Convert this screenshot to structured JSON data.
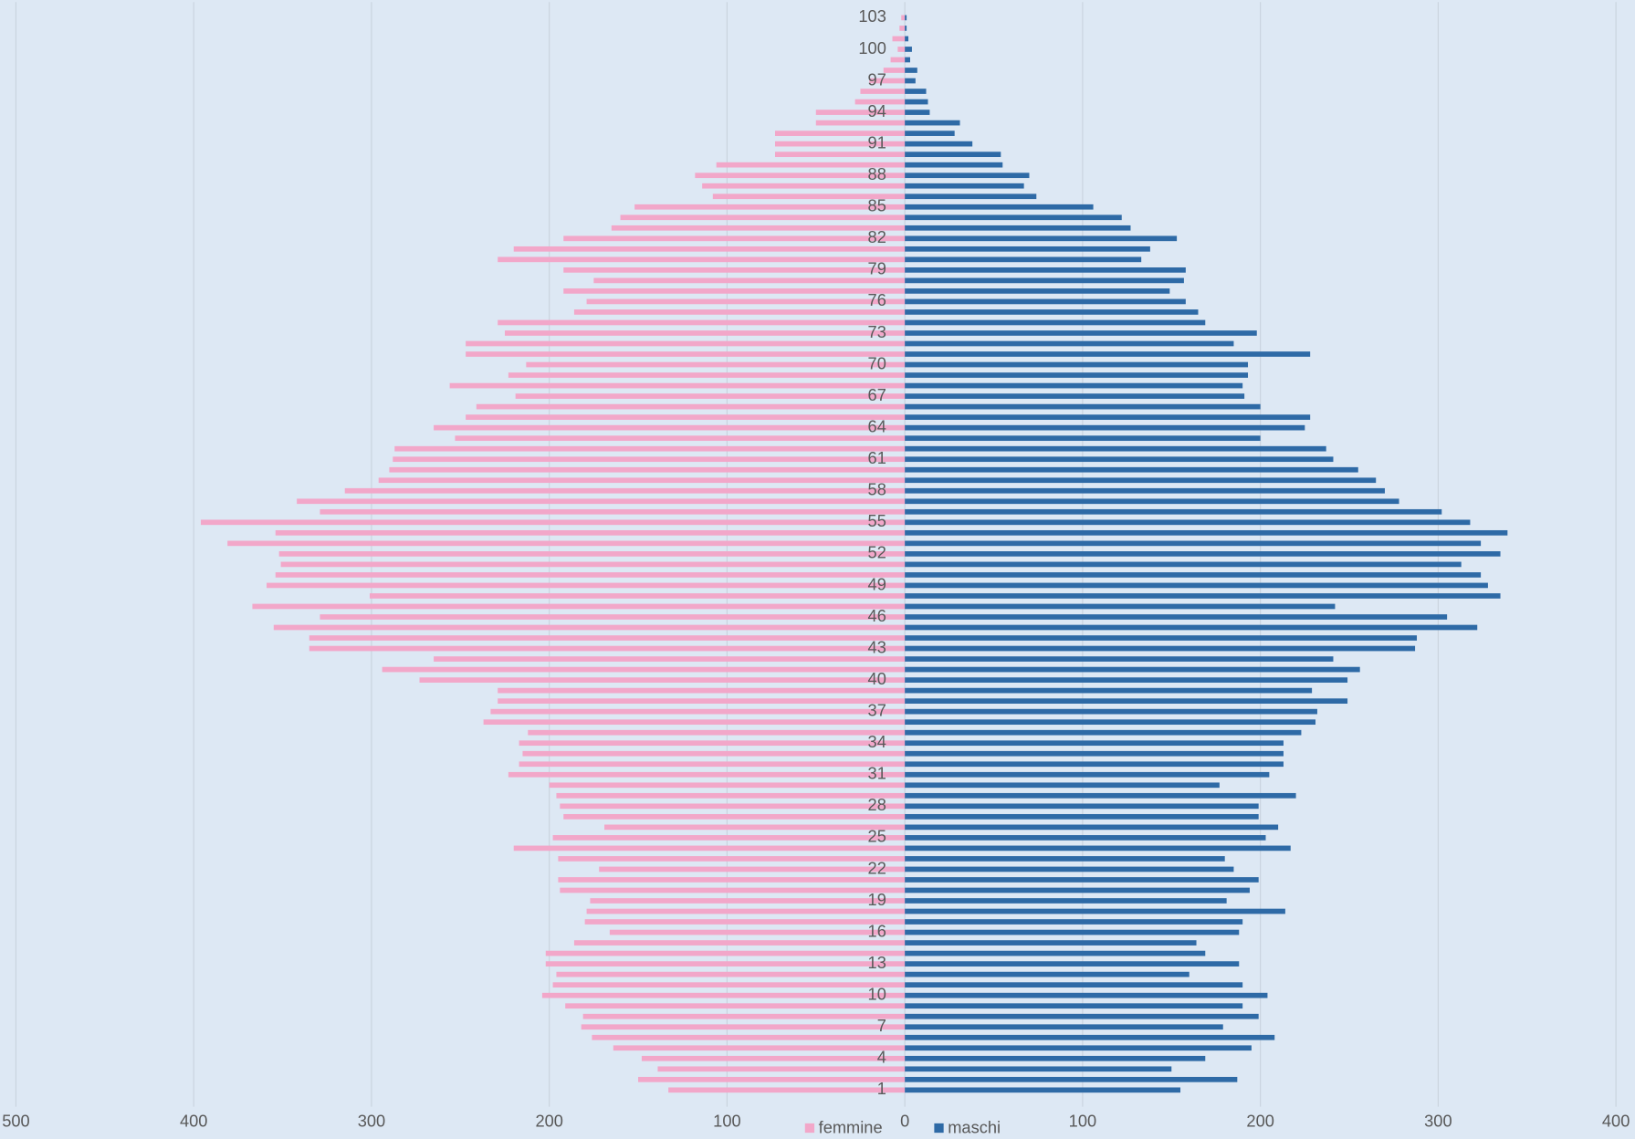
{
  "chart_data": {
    "type": "pyramid",
    "categories": [
      "1",
      null,
      null,
      "4",
      null,
      null,
      "7",
      null,
      null,
      "10",
      null,
      null,
      "13",
      null,
      null,
      "16",
      null,
      null,
      "19",
      null,
      null,
      "22",
      null,
      null,
      "25",
      null,
      null,
      "28",
      null,
      null,
      "31",
      null,
      null,
      "34",
      null,
      null,
      "37",
      null,
      null,
      "40",
      null,
      null,
      "43",
      null,
      null,
      "46",
      null,
      null,
      "49",
      null,
      null,
      "52",
      null,
      null,
      "55",
      null,
      null,
      "58",
      null,
      null,
      "61",
      null,
      null,
      "64",
      null,
      null,
      "67",
      null,
      null,
      "70",
      null,
      null,
      "73",
      null,
      null,
      "76",
      null,
      null,
      "79",
      null,
      null,
      "82",
      null,
      null,
      "85",
      null,
      null,
      "88",
      null,
      null,
      "91",
      null,
      null,
      "94",
      null,
      null,
      "97",
      null,
      null,
      "100",
      null,
      null,
      "103"
    ],
    "series": [
      {
        "name": "femmine",
        "color": "#f2a7c9",
        "values": [
          -133,
          -150,
          -139,
          -148,
          -164,
          -176,
          -182,
          -181,
          -191,
          -204,
          -198,
          -196,
          -202,
          -202,
          -186,
          -166,
          -180,
          -179,
          -177,
          -194,
          -195,
          -172,
          -195,
          -220,
          -198,
          -169,
          -192,
          -194,
          -196,
          -200,
          -223,
          -217,
          -215,
          -217,
          -212,
          -237,
          -233,
          -229,
          -229,
          -273,
          -294,
          -265,
          -335,
          -335,
          -355,
          -329,
          -367,
          -301,
          -359,
          -354,
          -351,
          -352,
          -381,
          -354,
          -396,
          -329,
          -342,
          -315,
          -296,
          -290,
          -288,
          -287,
          -253,
          -265,
          -247,
          -241,
          -219,
          -256,
          -223,
          -213,
          -247,
          -247,
          -225,
          -229,
          -186,
          -179,
          -192,
          -175,
          -192,
          -229,
          -220,
          -192,
          -165,
          -160,
          -152,
          -108,
          -114,
          -118,
          -106,
          -73,
          -73,
          -73,
          -50,
          -50,
          -28,
          -25,
          -20,
          -12,
          -8,
          -4,
          -7,
          -3,
          -2
        ]
      },
      {
        "name": "maschi",
        "color": "#2e6aa6",
        "values": [
          155,
          187,
          150,
          169,
          195,
          208,
          179,
          199,
          190,
          204,
          190,
          160,
          188,
          169,
          164,
          188,
          190,
          214,
          181,
          194,
          199,
          185,
          180,
          217,
          203,
          210,
          199,
          199,
          220,
          177,
          205,
          213,
          213,
          213,
          223,
          231,
          232,
          249,
          229,
          249,
          256,
          241,
          287,
          288,
          322,
          305,
          242,
          335,
          328,
          324,
          313,
          335,
          324,
          339,
          318,
          302,
          278,
          270,
          265,
          255,
          241,
          237,
          200,
          225,
          228,
          200,
          191,
          190,
          193,
          193,
          228,
          185,
          198,
          169,
          165,
          158,
          149,
          157,
          158,
          133,
          138,
          153,
          127,
          122,
          106,
          74,
          67,
          70,
          55,
          54,
          38,
          28,
          31,
          14,
          13,
          12,
          6,
          7,
          3,
          4,
          2,
          1,
          1
        ]
      }
    ],
    "xlim": [
      -500,
      400
    ],
    "xticks": [
      {
        "value": -500,
        "label": "500"
      },
      {
        "value": -400,
        "label": "400"
      },
      {
        "value": -300,
        "label": "300"
      },
      {
        "value": -200,
        "label": "200"
      },
      {
        "value": -100,
        "label": "100"
      },
      0,
      100,
      200,
      300,
      400
    ],
    "grid": true,
    "legend": "bottom"
  }
}
